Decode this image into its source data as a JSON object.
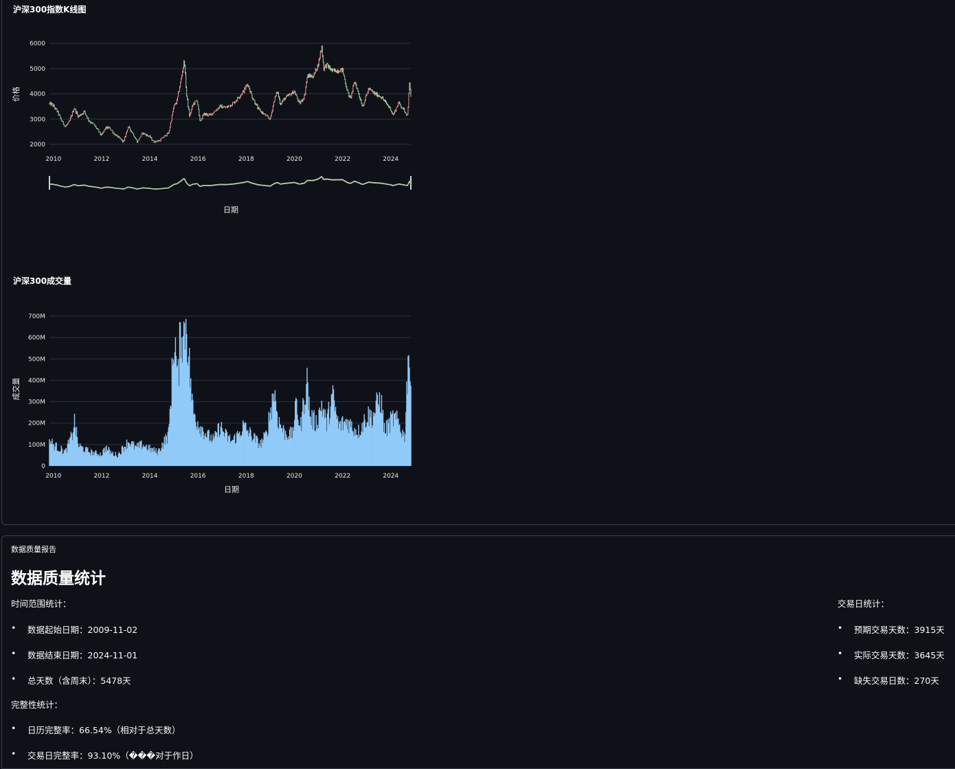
{
  "kline": {
    "title": "沪深300指数K线图",
    "ylabel": "价格",
    "xlabel": "日期"
  },
  "volume": {
    "title": "沪深300成交量",
    "ylabel": "成交量",
    "xlabel": "日期"
  },
  "colors": {
    "up": "#ef9a9a",
    "down": "#a5d6a7",
    "volume": "#90caf9",
    "grid": "#2e3340",
    "bg": "#0e1117"
  },
  "chart_data": [
    {
      "type": "candlestick",
      "title": "沪深300指数K线图",
      "xlabel": "日期",
      "ylabel": "价格",
      "xlim": [
        "2009-11-02",
        "2024-11-01"
      ],
      "ylim": [
        1900,
        6100
      ],
      "yticks": [
        2000,
        3000,
        4000,
        5000,
        6000
      ],
      "xticks": [
        "2010",
        "2012",
        "2014",
        "2016",
        "2018",
        "2020",
        "2022",
        "2024"
      ],
      "rangeslider": true,
      "close_series": [
        [
          "2009-11-02",
          3600
        ],
        [
          "2009-12-15",
          3575
        ],
        [
          "2010-03-01",
          3300
        ],
        [
          "2010-05-01",
          2950
        ],
        [
          "2010-07-01",
          2700
        ],
        [
          "2010-09-01",
          2900
        ],
        [
          "2010-11-10",
          3450
        ],
        [
          "2011-01-15",
          3100
        ],
        [
          "2011-04-15",
          3300
        ],
        [
          "2011-06-20",
          2950
        ],
        [
          "2011-09-15",
          2750
        ],
        [
          "2011-12-31",
          2350
        ],
        [
          "2012-03-01",
          2650
        ],
        [
          "2012-05-01",
          2650
        ],
        [
          "2012-07-15",
          2400
        ],
        [
          "2012-09-01",
          2300
        ],
        [
          "2012-12-01",
          2100
        ],
        [
          "2013-02-05",
          2700
        ],
        [
          "2013-04-15",
          2450
        ],
        [
          "2013-06-25",
          2100
        ],
        [
          "2013-09-15",
          2450
        ],
        [
          "2013-12-31",
          2300
        ],
        [
          "2014-03-01",
          2100
        ],
        [
          "2014-06-01",
          2150
        ],
        [
          "2014-08-01",
          2300
        ],
        [
          "2014-10-15",
          2450
        ],
        [
          "2014-12-31",
          3500
        ],
        [
          "2015-02-15",
          3700
        ],
        [
          "2015-04-15",
          4500
        ],
        [
          "2015-06-08",
          5350
        ],
        [
          "2015-07-10",
          4000
        ],
        [
          "2015-08-26",
          3100
        ],
        [
          "2015-10-20",
          3600
        ],
        [
          "2015-12-22",
          3750
        ],
        [
          "2016-01-28",
          2900
        ],
        [
          "2016-04-01",
          3200
        ],
        [
          "2016-07-01",
          3150
        ],
        [
          "2016-11-30",
          3500
        ],
        [
          "2017-03-01",
          3450
        ],
        [
          "2017-07-01",
          3650
        ],
        [
          "2017-11-20",
          4100
        ],
        [
          "2018-01-24",
          4400
        ],
        [
          "2018-03-30",
          3900
        ],
        [
          "2018-07-01",
          3400
        ],
        [
          "2018-10-15",
          3150
        ],
        [
          "2018-12-31",
          3000
        ],
        [
          "2019-03-01",
          3750
        ],
        [
          "2019-04-20",
          4100
        ],
        [
          "2019-06-01",
          3600
        ],
        [
          "2019-08-01",
          3800
        ],
        [
          "2019-12-31",
          4100
        ],
        [
          "2020-03-20",
          3600
        ],
        [
          "2020-06-01",
          3900
        ],
        [
          "2020-07-15",
          4700
        ],
        [
          "2020-10-15",
          4700
        ],
        [
          "2020-12-31",
          5200
        ],
        [
          "2021-02-18",
          5900
        ],
        [
          "2021-03-20",
          5000
        ],
        [
          "2021-05-01",
          5150
        ],
        [
          "2021-08-01",
          4900
        ],
        [
          "2021-12-31",
          4950
        ],
        [
          "2022-03-15",
          4100
        ],
        [
          "2022-04-27",
          3800
        ],
        [
          "2022-07-05",
          4500
        ],
        [
          "2022-10-31",
          3500
        ],
        [
          "2023-01-31",
          4200
        ],
        [
          "2023-05-01",
          4000
        ],
        [
          "2023-08-01",
          3900
        ],
        [
          "2023-12-31",
          3400
        ],
        [
          "2024-02-05",
          3150
        ],
        [
          "2024-05-01",
          3650
        ],
        [
          "2024-09-13",
          3150
        ],
        [
          "2024-10-08",
          4450
        ],
        [
          "2024-11-01",
          3850
        ]
      ]
    },
    {
      "type": "bar",
      "title": "沪深300成交量",
      "xlabel": "日期",
      "ylabel": "成交量",
      "xlim": [
        "2009-11-02",
        "2024-11-01"
      ],
      "ylim": [
        0,
        720000000
      ],
      "yticks": [
        "0",
        "100M",
        "200M",
        "300M",
        "400M",
        "500M",
        "600M",
        "700M"
      ],
      "xticks": [
        "2010",
        "2012",
        "2014",
        "2016",
        "2018",
        "2020",
        "2022",
        "2024"
      ],
      "volume_series": [
        [
          "2009-11-02",
          120
        ],
        [
          "2010-01-15",
          95
        ],
        [
          "2010-04-15",
          80
        ],
        [
          "2010-07-01",
          65
        ],
        [
          "2010-10-15",
          145
        ],
        [
          "2010-11-12",
          215
        ],
        [
          "2011-01-15",
          95
        ],
        [
          "2011-05-01",
          75
        ],
        [
          "2011-09-01",
          60
        ],
        [
          "2012-01-01",
          55
        ],
        [
          "2012-03-01",
          85
        ],
        [
          "2012-06-01",
          60
        ],
        [
          "2012-09-01",
          50
        ],
        [
          "2012-12-20",
          95
        ],
        [
          "2013-02-20",
          115
        ],
        [
          "2013-06-01",
          85
        ],
        [
          "2013-09-15",
          100
        ],
        [
          "2014-01-01",
          80
        ],
        [
          "2014-05-01",
          65
        ],
        [
          "2014-08-01",
          110
        ],
        [
          "2014-10-15",
          150
        ],
        [
          "2014-12-05",
          420
        ],
        [
          "2015-01-10",
          630
        ],
        [
          "2015-03-01",
          380
        ],
        [
          "2015-04-20",
          660
        ],
        [
          "2015-05-28",
          600
        ],
        [
          "2015-07-09",
          690
        ],
        [
          "2015-08-25",
          460
        ],
        [
          "2015-10-20",
          250
        ],
        [
          "2016-01-10",
          200
        ],
        [
          "2016-03-15",
          170
        ],
        [
          "2016-06-01",
          140
        ],
        [
          "2016-09-01",
          120
        ],
        [
          "2016-12-01",
          185
        ],
        [
          "2017-03-01",
          140
        ],
        [
          "2017-06-01",
          115
        ],
        [
          "2017-09-01",
          145
        ],
        [
          "2017-11-20",
          185
        ],
        [
          "2018-02-01",
          160
        ],
        [
          "2018-05-01",
          130
        ],
        [
          "2018-08-01",
          100
        ],
        [
          "2018-11-01",
          145
        ],
        [
          "2019-03-01",
          355
        ],
        [
          "2019-05-01",
          215
        ],
        [
          "2019-08-01",
          155
        ],
        [
          "2019-12-01",
          145
        ],
        [
          "2020-02-05",
          290
        ],
        [
          "2020-04-01",
          170
        ],
        [
          "2020-07-08",
          405
        ],
        [
          "2020-09-01",
          225
        ],
        [
          "2020-12-01",
          200
        ],
        [
          "2021-02-20",
          290
        ],
        [
          "2021-05-01",
          195
        ],
        [
          "2021-08-01",
          325
        ],
        [
          "2021-11-01",
          185
        ],
        [
          "2022-03-15",
          210
        ],
        [
          "2022-06-01",
          180
        ],
        [
          "2022-09-01",
          160
        ],
        [
          "2023-01-10",
          235
        ],
        [
          "2023-04-01",
          230
        ],
        [
          "2023-07-31",
          320
        ],
        [
          "2023-10-01",
          160
        ],
        [
          "2024-02-07",
          225
        ],
        [
          "2024-05-01",
          200
        ],
        [
          "2024-08-01",
          130
        ],
        [
          "2024-09-30",
          590
        ],
        [
          "2024-10-08",
          510
        ],
        [
          "2024-11-01",
          300
        ]
      ]
    }
  ],
  "report": {
    "section_label": "数据质量报告",
    "heading": "数据质量统计",
    "time_range_title": "时间范围统计：",
    "time_range_items": [
      "数据起始日期：2009-11-02",
      "数据结束日期：2024-11-01",
      "总天数（含周末）：5478天"
    ],
    "trade_title": "交易日统计：",
    "trade_items": [
      "预期交易天数：3915天",
      "实际交易天数：3645天",
      "缺失交易日数：270天"
    ],
    "completeness_title": "完整性统计：",
    "completeness_items": [
      "日历完整率：66.54%（相对于总天数）",
      "交易日完整率：93.10%（���对于作日）"
    ]
  }
}
